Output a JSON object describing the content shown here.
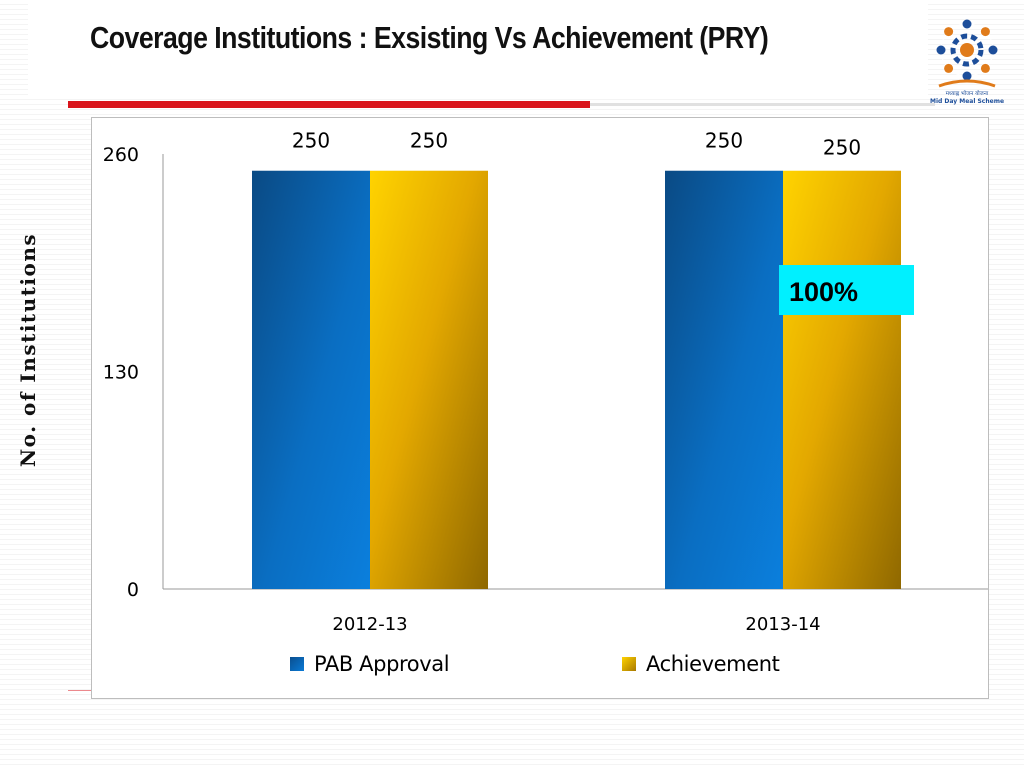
{
  "slide": {
    "title": "Coverage Institutions : Exsisting Vs Achievement (PRY)",
    "logo_text": [
      "मध्याह्न भोजन योजना",
      "Mid Day Meal Scheme"
    ]
  },
  "callout": {
    "text": "100%",
    "color": "#00f0ff"
  },
  "colors": {
    "accent_red": "#d9141b",
    "pab_approval": "#0868b5",
    "achievement": "#f2b400"
  },
  "chart_data": {
    "type": "bar",
    "categories": [
      "2012-13",
      "2013-14"
    ],
    "series": [
      {
        "name": "PAB Approval",
        "values": [
          250,
          250
        ],
        "data_labels": [
          "250",
          "250"
        ]
      },
      {
        "name": "Achievement",
        "values": [
          250,
          250
        ],
        "data_labels": [
          "250",
          "250"
        ]
      }
    ],
    "title": "",
    "xlabel": "",
    "ylabel": "No. of Institutions",
    "ylim": [
      0,
      260
    ],
    "yticks": [
      0,
      130,
      260
    ],
    "ytick_labels": [
      "0",
      "130",
      "260"
    ],
    "grid": false,
    "legend": "bottom"
  }
}
